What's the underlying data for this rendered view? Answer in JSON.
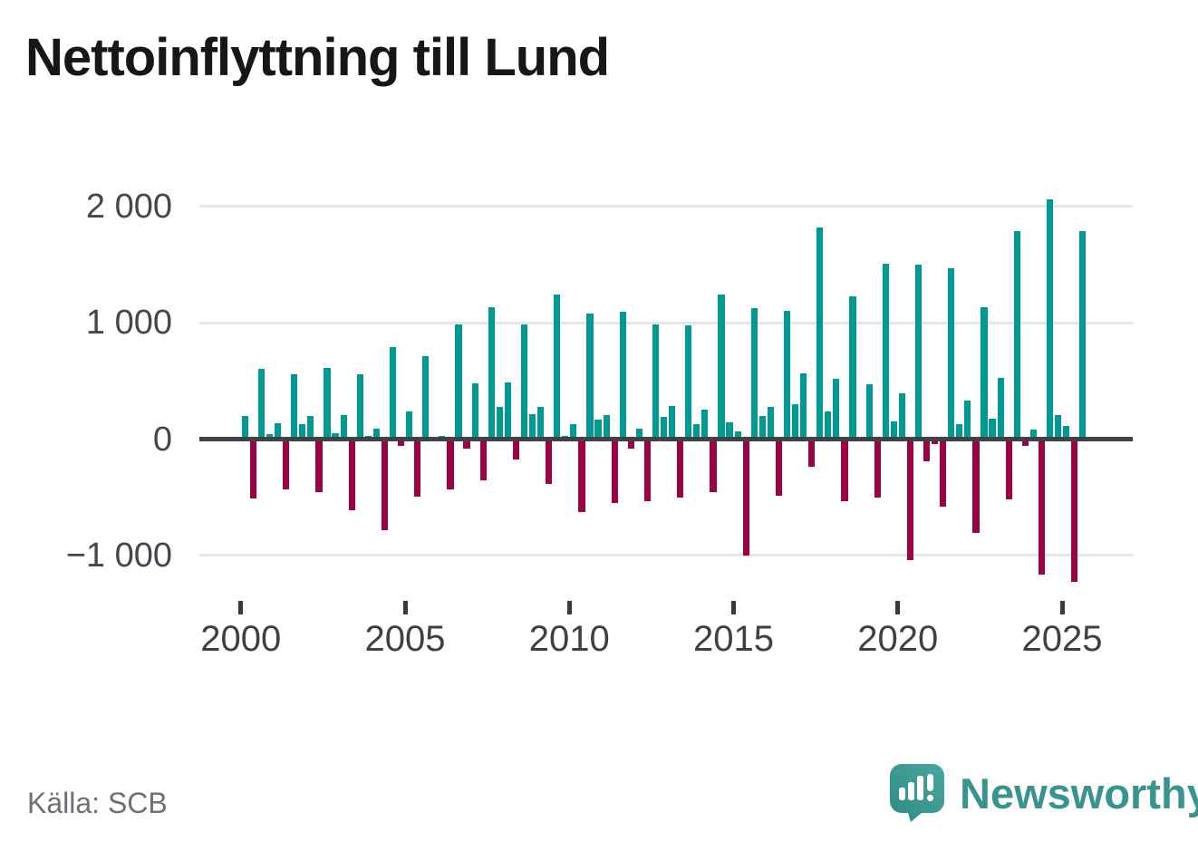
{
  "title": "Nettoinflyttning till Lund",
  "source": {
    "label": "Källa: SCB"
  },
  "logo": {
    "text": "Newsworthy",
    "icon": "newsworthy-speech-bubble-bar-chart-icon"
  },
  "colors": {
    "positive_bar": "#009a92",
    "negative_bar": "#9b0343",
    "zero_axis": "#3f4347",
    "gridline": "#e6e6e6",
    "brand_teal": "#38948d"
  },
  "chart_data": {
    "type": "bar",
    "title": "Nettoinflyttning till Lund",
    "xlabel": "",
    "ylabel": "",
    "legend": "none",
    "grid": "horizontal",
    "ylim": [
      -1300,
      2100
    ],
    "y_ticks": [
      {
        "value": 2000,
        "label": "2 000"
      },
      {
        "value": 1000,
        "label": "1 000"
      },
      {
        "value": 0,
        "label": "0"
      },
      {
        "value": -1000,
        "label": "−1 000"
      }
    ],
    "x_ticks": [
      {
        "year": 2000,
        "label": "2000"
      },
      {
        "year": 2005,
        "label": "2005"
      },
      {
        "year": 2010,
        "label": "2010"
      },
      {
        "year": 2015,
        "label": "2015"
      },
      {
        "year": 2020,
        "label": "2020"
      },
      {
        "year": 2025,
        "label": "2025"
      }
    ],
    "series_unit": "quarterly net migration",
    "years": [
      {
        "year": 2000,
        "values": [
          200,
          -510,
          605,
          40
        ]
      },
      {
        "year": 2001,
        "values": [
          140,
          -435,
          555,
          125
        ]
      },
      {
        "year": 2002,
        "values": [
          195,
          -455,
          610,
          50
        ]
      },
      {
        "year": 2003,
        "values": [
          210,
          -610,
          555,
          30
        ]
      },
      {
        "year": 2004,
        "values": [
          90,
          -785,
          795,
          -60
        ]
      },
      {
        "year": 2005,
        "values": [
          240,
          -495,
          710,
          0
        ]
      },
      {
        "year": 2006,
        "values": [
          30,
          -435,
          985,
          -85
        ]
      },
      {
        "year": 2007,
        "values": [
          480,
          -355,
          1135,
          275
        ]
      },
      {
        "year": 2008,
        "values": [
          490,
          -175,
          985,
          215
        ]
      },
      {
        "year": 2009,
        "values": [
          280,
          -385,
          1245,
          30
        ]
      },
      {
        "year": 2010,
        "values": [
          130,
          -625,
          1080,
          170
        ]
      },
      {
        "year": 2011,
        "values": [
          210,
          -550,
          1095,
          -80
        ]
      },
      {
        "year": 2012,
        "values": [
          90,
          -535,
          985,
          190
        ]
      },
      {
        "year": 2013,
        "values": [
          285,
          -500,
          980,
          130
        ]
      },
      {
        "year": 2014,
        "values": [
          255,
          -455,
          1245,
          145
        ]
      },
      {
        "year": 2015,
        "values": [
          65,
          -1005,
          1130,
          200
        ]
      },
      {
        "year": 2016,
        "values": [
          280,
          -485,
          1105,
          300
        ]
      },
      {
        "year": 2017,
        "values": [
          565,
          -240,
          1820,
          235
        ]
      },
      {
        "year": 2018,
        "values": [
          515,
          -535,
          1230,
          0
        ]
      },
      {
        "year": 2019,
        "values": [
          470,
          -500,
          1505,
          150
        ]
      },
      {
        "year": 2020,
        "values": [
          390,
          -1040,
          1500,
          -190
        ]
      },
      {
        "year": 2021,
        "values": [
          -45,
          -580,
          1470,
          125
        ]
      },
      {
        "year": 2022,
        "values": [
          330,
          -810,
          1135,
          175
        ]
      },
      {
        "year": 2023,
        "values": [
          530,
          -520,
          1790,
          -60
        ]
      },
      {
        "year": 2024,
        "values": [
          80,
          -1165,
          2060,
          210
        ]
      },
      {
        "year": 2025,
        "values": [
          110,
          -1230,
          1790
        ]
      }
    ]
  }
}
